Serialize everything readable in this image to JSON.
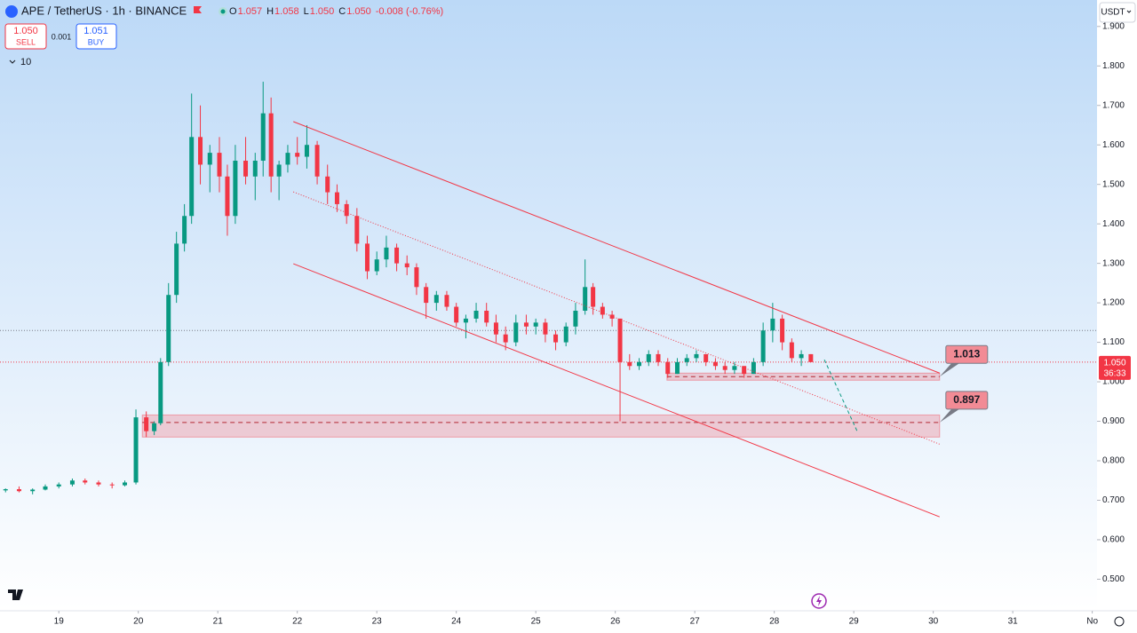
{
  "toolbar": {
    "symbol": "APE / TetherUS · 1h · BINANCE",
    "ohlc": [
      {
        "label": "O",
        "value": "1.057"
      },
      {
        "label": "H",
        "value": "1.058"
      },
      {
        "label": "L",
        "value": "1.050"
      },
      {
        "label": "C",
        "value": "1.050"
      }
    ],
    "change": "-0.008 (-0.76%)",
    "sell": {
      "price": "1.050",
      "label": "SELL"
    },
    "spread": "0.001",
    "buy": {
      "price": "1.051",
      "label": "BUY"
    },
    "indicators": "10",
    "currency": "USDT",
    "countdown": "36:33"
  },
  "chart_data": {
    "type": "candlestick",
    "up_color": "#089981",
    "down_color": "#f23645",
    "xlim": [
      18.26,
      32.06
    ],
    "ylim": [
      0.42,
      1.967
    ],
    "xticks": [
      19,
      20,
      21,
      22,
      23,
      24,
      25,
      26,
      27,
      28,
      29,
      30,
      31,
      {
        "value": 32,
        "label": "No"
      }
    ],
    "yticks": [
      {
        "value": 0.5,
        "label": "0.500"
      },
      {
        "value": 0.6,
        "label": "0.600"
      },
      {
        "value": 0.7,
        "label": "0.700"
      },
      {
        "value": 0.8,
        "label": "0.800"
      },
      {
        "value": 0.9,
        "label": "0.900"
      },
      {
        "value": 1.0,
        "label": "1.000"
      },
      {
        "value": 1.1,
        "label": "1.100"
      },
      {
        "value": 1.2,
        "label": "1.200"
      },
      {
        "value": 1.3,
        "label": "1.300"
      },
      {
        "value": 1.4,
        "label": "1.400"
      },
      {
        "value": 1.5,
        "label": "1.500"
      },
      {
        "value": 1.6,
        "label": "1.600"
      },
      {
        "value": 1.7,
        "label": "1.700"
      },
      {
        "value": 1.8,
        "label": "1.800"
      },
      {
        "value": 1.9,
        "label": "1.900"
      }
    ],
    "x": [
      18.33,
      18.5,
      18.67,
      18.83,
      19.0,
      19.17,
      19.33,
      19.5,
      19.67,
      19.83,
      19.97,
      20.1,
      20.2,
      20.28,
      20.38,
      20.48,
      20.58,
      20.67,
      20.78,
      20.9,
      21.02,
      21.12,
      21.22,
      21.35,
      21.47,
      21.57,
      21.67,
      21.77,
      21.88,
      22.0,
      22.12,
      22.25,
      22.38,
      22.5,
      22.62,
      22.75,
      22.88,
      23.0,
      23.12,
      23.25,
      23.38,
      23.5,
      23.62,
      23.75,
      23.88,
      24.0,
      24.12,
      24.25,
      24.38,
      24.5,
      24.62,
      24.75,
      24.88,
      25.0,
      25.12,
      25.25,
      25.38,
      25.5,
      25.62,
      25.72,
      25.84,
      25.96,
      26.06,
      26.18,
      26.3,
      26.42,
      26.54,
      26.66,
      26.78,
      26.9,
      27.02,
      27.14,
      27.26,
      27.38,
      27.5,
      27.62,
      27.74,
      27.86,
      27.98,
      28.1,
      28.22,
      28.34,
      28.46
    ],
    "open": [
      0.725,
      0.728,
      0.723,
      0.727,
      0.735,
      0.74,
      0.75,
      0.745,
      0.74,
      0.738,
      0.745,
      0.91,
      0.875,
      0.895,
      1.05,
      1.22,
      1.35,
      1.42,
      1.62,
      1.55,
      1.58,
      1.52,
      1.42,
      1.56,
      1.52,
      1.56,
      1.68,
      1.52,
      1.55,
      1.58,
      1.57,
      1.6,
      1.52,
      1.48,
      1.45,
      1.42,
      1.35,
      1.28,
      1.31,
      1.34,
      1.3,
      1.29,
      1.24,
      1.2,
      1.22,
      1.19,
      1.15,
      1.16,
      1.18,
      1.15,
      1.12,
      1.1,
      1.15,
      1.14,
      1.15,
      1.12,
      1.1,
      1.14,
      1.18,
      1.24,
      1.19,
      1.17,
      1.16,
      1.05,
      1.04,
      1.05,
      1.07,
      1.05,
      1.02,
      1.05,
      1.06,
      1.07,
      1.05,
      1.04,
      1.03,
      1.04,
      1.02,
      1.05,
      1.13,
      1.16,
      1.1,
      1.06,
      1.07
    ],
    "high": [
      0.73,
      0.735,
      0.73,
      0.74,
      0.745,
      0.755,
      0.755,
      0.75,
      0.745,
      0.75,
      0.93,
      0.925,
      0.9,
      1.06,
      1.25,
      1.38,
      1.45,
      1.73,
      1.7,
      1.6,
      1.62,
      1.55,
      1.6,
      1.62,
      1.58,
      1.76,
      1.72,
      1.56,
      1.6,
      1.62,
      1.65,
      1.61,
      1.55,
      1.5,
      1.46,
      1.44,
      1.37,
      1.33,
      1.37,
      1.35,
      1.32,
      1.3,
      1.25,
      1.23,
      1.23,
      1.2,
      1.17,
      1.2,
      1.2,
      1.17,
      1.14,
      1.17,
      1.17,
      1.16,
      1.16,
      1.13,
      1.15,
      1.2,
      1.31,
      1.25,
      1.2,
      1.18,
      1.16,
      1.07,
      1.06,
      1.08,
      1.08,
      1.06,
      1.06,
      1.07,
      1.08,
      1.07,
      1.06,
      1.05,
      1.05,
      1.04,
      1.06,
      1.15,
      1.2,
      1.17,
      1.11,
      1.08,
      1.07
    ],
    "low": [
      0.72,
      0.72,
      0.715,
      0.725,
      0.73,
      0.735,
      0.74,
      0.735,
      0.73,
      0.735,
      0.74,
      0.86,
      0.865,
      0.89,
      1.04,
      1.2,
      1.33,
      1.4,
      1.5,
      1.48,
      1.48,
      1.37,
      1.4,
      1.5,
      1.46,
      1.52,
      1.48,
      1.46,
      1.53,
      1.55,
      1.54,
      1.5,
      1.45,
      1.43,
      1.4,
      1.33,
      1.26,
      1.27,
      1.29,
      1.28,
      1.27,
      1.22,
      1.16,
      1.18,
      1.18,
      1.14,
      1.11,
      1.15,
      1.14,
      1.1,
      1.08,
      1.09,
      1.12,
      1.12,
      1.1,
      1.08,
      1.09,
      1.12,
      1.17,
      1.17,
      1.16,
      1.14,
      0.9,
      1.03,
      1.03,
      1.04,
      1.04,
      1.01,
      1.02,
      1.04,
      1.05,
      1.04,
      1.03,
      1.02,
      1.02,
      1.01,
      1.02,
      1.04,
      1.1,
      1.08,
      1.05,
      1.04,
      1.05
    ],
    "close": [
      0.728,
      0.723,
      0.727,
      0.735,
      0.74,
      0.75,
      0.745,
      0.74,
      0.738,
      0.745,
      0.91,
      0.875,
      0.895,
      1.05,
      1.22,
      1.35,
      1.42,
      1.62,
      1.55,
      1.58,
      1.52,
      1.42,
      1.56,
      1.52,
      1.56,
      1.68,
      1.52,
      1.55,
      1.58,
      1.57,
      1.6,
      1.52,
      1.48,
      1.45,
      1.42,
      1.35,
      1.28,
      1.31,
      1.34,
      1.3,
      1.29,
      1.24,
      1.2,
      1.22,
      1.19,
      1.15,
      1.16,
      1.18,
      1.15,
      1.12,
      1.1,
      1.15,
      1.14,
      1.15,
      1.12,
      1.1,
      1.14,
      1.18,
      1.24,
      1.19,
      1.17,
      1.16,
      1.05,
      1.04,
      1.05,
      1.07,
      1.05,
      1.02,
      1.05,
      1.06,
      1.07,
      1.05,
      1.04,
      1.03,
      1.04,
      1.02,
      1.05,
      1.13,
      1.16,
      1.1,
      1.06,
      1.07,
      1.05
    ],
    "trendlines": [
      {
        "x": [
          21.95,
          30.08
        ],
        "y": [
          1.659,
          1.022
        ],
        "color": "#f23645",
        "style": "solid"
      },
      {
        "x": [
          21.95,
          30.08
        ],
        "y": [
          1.481,
          0.842
        ],
        "color": "#f23645",
        "style": "dotted"
      },
      {
        "x": [
          21.95,
          30.08
        ],
        "y": [
          1.299,
          0.658
        ],
        "color": "#f23645",
        "style": "solid"
      },
      {
        "x": [
          28.63,
          29.04
        ],
        "y": [
          1.056,
          0.876
        ],
        "color": "#089981",
        "style": "dashed"
      }
    ],
    "zones": [
      {
        "x": [
          26.65,
          30.08
        ],
        "ylim": [
          1.004,
          1.022
        ],
        "level": 1.013
      },
      {
        "x": [
          20.05,
          30.08
        ],
        "ylim": [
          0.86,
          0.916
        ],
        "level": 0.897
      }
    ],
    "hlines": [
      {
        "value": 1.13,
        "color": "#787b86"
      },
      {
        "value": 1.05,
        "color": "#f23645"
      }
    ],
    "last_price": {
      "value": 1.05,
      "label": "1.050"
    }
  }
}
